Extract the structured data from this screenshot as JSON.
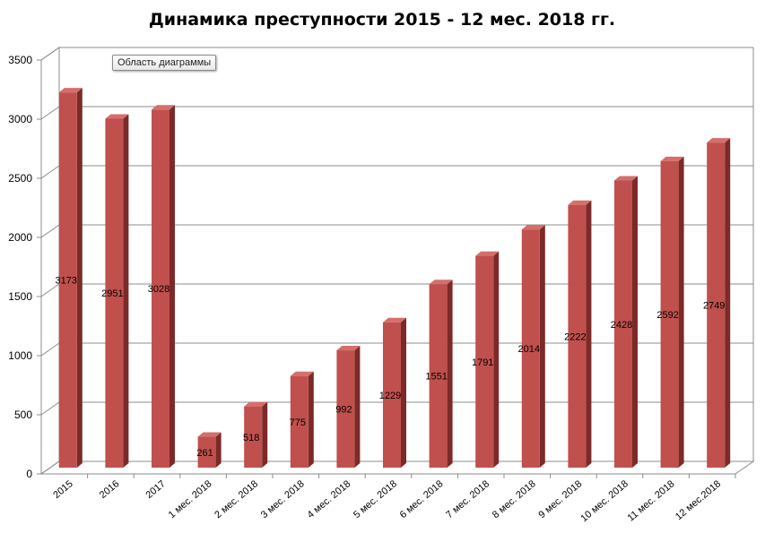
{
  "chart_data": {
    "type": "bar",
    "title": "Динамика преступности 2015 - 12 мес. 2018 гг.",
    "categories": [
      "2015",
      "2016",
      "2017",
      "1 мес. 2018",
      "2 мес. 2018",
      "3 мес. 2018",
      "4 мес. 2018",
      "5 мес. 2018",
      "6 мес. 2018",
      "7 мес. 2018",
      "8 мес. 2018",
      "9 мес. 2018",
      "10 мес. 2018",
      "11 мес. 2018",
      "12 мес.2018"
    ],
    "values": [
      3173,
      2951,
      3028,
      261,
      518,
      775,
      992,
      1229,
      1551,
      1791,
      2014,
      2222,
      2428,
      2592,
      2749
    ],
    "ylim": [
      0,
      3500
    ],
    "yticks": [
      "0",
      "500",
      "1000",
      "1500",
      "2000",
      "2500",
      "3000",
      "3500"
    ],
    "grid": true,
    "style": "3d-column",
    "colors": {
      "front": "#c0504d",
      "side": "#7b2a28",
      "top": "#d46f6c",
      "grid": "#8c8c8c"
    }
  },
  "tooltip": {
    "label": "Область диаграммы"
  }
}
